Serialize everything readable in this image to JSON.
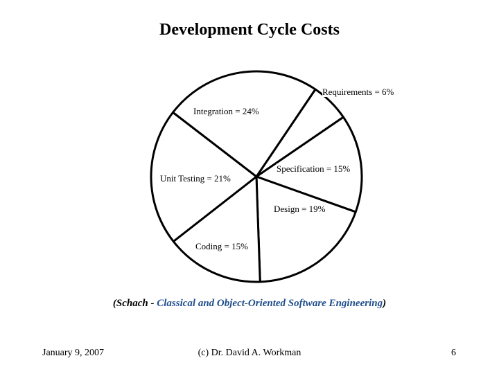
{
  "slide": {
    "date": "January 9, 2007",
    "author": "(c) Dr. David A. Workman",
    "page_number": "6"
  },
  "citation": {
    "open_paren": "(",
    "author": "Schach - ",
    "book": "Classical and Object-Oriented Software Engineering",
    "close_paren": ")"
  },
  "colors": {
    "slice_fill": "#ffffff",
    "slice_stroke": "#000000",
    "citation_book": "#1f4e8c"
  },
  "chart_data": {
    "type": "pie",
    "title": "Development Cycle Costs",
    "slices": [
      {
        "name": "Requirements",
        "value": 6,
        "label": "Requirements = 6%"
      },
      {
        "name": "Specification",
        "value": 15,
        "label": "Specification = 15%"
      },
      {
        "name": "Design",
        "value": 19,
        "label": "Design = 19%"
      },
      {
        "name": "Coding",
        "value": 15,
        "label": "Coding = 15%"
      },
      {
        "name": "Unit Testing",
        "value": 21,
        "label": "Unit Testing = 21%"
      },
      {
        "name": "Integration",
        "value": 24,
        "label": "Integration = 24%"
      }
    ]
  }
}
